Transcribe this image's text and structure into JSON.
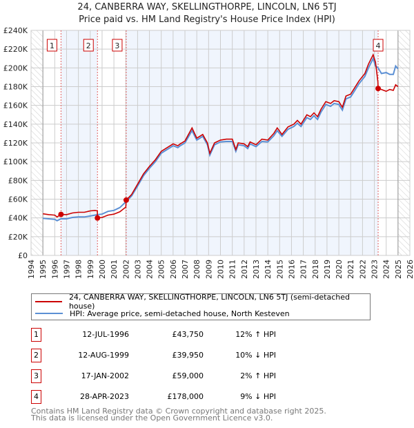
{
  "chart_data": {
    "type": "line",
    "title": "24, CANBERRA WAY, SKELLINGTHORPE, LINCOLN, LN6 5TJ",
    "subtitle": "Price paid vs. HM Land Registry's House Price Index (HPI)",
    "xlim": [
      1994,
      2026
    ],
    "ylim": [
      0,
      240000
    ],
    "x_ticks": [
      "1994",
      "1995",
      "1996",
      "1997",
      "1998",
      "1999",
      "2000",
      "2001",
      "2002",
      "2003",
      "2004",
      "2005",
      "2006",
      "2007",
      "2008",
      "2009",
      "2010",
      "2011",
      "2012",
      "2013",
      "2014",
      "2015",
      "2016",
      "2017",
      "2018",
      "2019",
      "2020",
      "2021",
      "2022",
      "2023",
      "2024",
      "2025",
      "2026"
    ],
    "y_ticks": [
      "£0",
      "£20K",
      "£40K",
      "£60K",
      "£80K",
      "£100K",
      "£120K",
      "£140K",
      "£160K",
      "£180K",
      "£200K",
      "£220K",
      "£240K"
    ],
    "grid": true,
    "data_range": [
      1995,
      2025
    ],
    "series": [
      {
        "name": "24, CANBERRA WAY, SKELLINGTHORPE, LINCOLN, LN6 5TJ (semi-detached house)",
        "color": "#cc0000",
        "x": [
          1995,
          1995.5,
          1996,
          1996.2,
          1996.53,
          1997,
          1997.5,
          1998,
          1998.5,
          1999,
          1999.4,
          1999.6,
          1999.61,
          2000,
          2000.5,
          2001,
          2001.5,
          2002.0,
          2002.04,
          2002.5,
          2003,
          2003.5,
          2004,
          2004.5,
          2005,
          2005.5,
          2006,
          2006.4,
          2006.6,
          2007,
          2007.6,
          2008,
          2008.5,
          2008.9,
          2009.1,
          2009.5,
          2010,
          2010.5,
          2011,
          2011.3,
          2011.5,
          2012,
          2012.3,
          2012.5,
          2013,
          2013.5,
          2014,
          2014.5,
          2014.8,
          2015.2,
          2015.7,
          2016.2,
          2016.5,
          2016.8,
          2017.3,
          2017.6,
          2017.9,
          2018.2,
          2018.5,
          2018.9,
          2019.3,
          2019.6,
          2020,
          2020.3,
          2020.6,
          2021,
          2021.3,
          2021.7,
          2022.2,
          2022.5,
          2022.9,
          2023.1,
          2023.3,
          2023.32,
          2023.6,
          2024,
          2024.3,
          2024.6,
          2024.8,
          2025
        ],
        "y": [
          44400,
          43500,
          43000,
          41000,
          43750,
          43500,
          45300,
          46000,
          46000,
          47500,
          48000,
          47500,
          39950,
          40500,
          43000,
          44000,
          46500,
          51500,
          59000,
          65000,
          76000,
          87000,
          95000,
          102000,
          111000,
          115000,
          119000,
          117000,
          119000,
          122000,
          136000,
          125000,
          129000,
          120000,
          109000,
          120000,
          123000,
          124000,
          124000,
          113000,
          120000,
          119000,
          116000,
          121000,
          118000,
          124000,
          123000,
          130000,
          136000,
          129000,
          137000,
          140000,
          144000,
          140000,
          150000,
          148000,
          152000,
          148000,
          156000,
          164000,
          162000,
          165000,
          164000,
          158000,
          170000,
          172000,
          178000,
          186000,
          194000,
          204000,
          214000,
          206000,
          185000,
          178000,
          177000,
          175000,
          177000,
          176000,
          182000,
          180000
        ]
      },
      {
        "name": "HPI: Average price, semi-detached house, North Kesteven",
        "color": "#5b8fd4",
        "x": [
          1995,
          1995.5,
          1996,
          1996.2,
          1996.53,
          1997,
          1997.5,
          1998,
          1998.5,
          1999,
          1999.4,
          1999.61,
          2000,
          2000.5,
          2001,
          2001.5,
          2002.04,
          2002.5,
          2003,
          2003.5,
          2004,
          2004.5,
          2005,
          2005.5,
          2006,
          2006.4,
          2006.6,
          2007,
          2007.6,
          2008,
          2008.5,
          2008.9,
          2009.1,
          2009.5,
          2010,
          2010.5,
          2011,
          2011.3,
          2011.5,
          2012,
          2012.3,
          2012.5,
          2013,
          2013.5,
          2014,
          2014.5,
          2014.8,
          2015.2,
          2015.7,
          2016.2,
          2016.5,
          2016.8,
          2017.3,
          2017.6,
          2017.9,
          2018.2,
          2018.5,
          2018.9,
          2019.3,
          2019.6,
          2020,
          2020.3,
          2020.6,
          2021,
          2021.3,
          2021.7,
          2022.2,
          2022.5,
          2022.9,
          2023.1,
          2023.32,
          2023.6,
          2024,
          2024.3,
          2024.6,
          2024.8,
          2025
        ],
        "y": [
          39500,
          39000,
          38500,
          37000,
          39000,
          39000,
          40500,
          41000,
          41000,
          42000,
          43000,
          43500,
          44000,
          47000,
          48000,
          51000,
          57500,
          63500,
          74000,
          85000,
          93000,
          100000,
          109000,
          113000,
          117000,
          115000,
          117000,
          120000,
          133000,
          123000,
          127000,
          118000,
          107000,
          118000,
          121000,
          121500,
          121500,
          111000,
          118000,
          117000,
          114000,
          119000,
          116000,
          121500,
          121000,
          127500,
          133000,
          127000,
          134500,
          137500,
          141000,
          137500,
          147000,
          145000,
          149000,
          145000,
          153000,
          161000,
          159000,
          162000,
          161000,
          155000,
          167000,
          169000,
          175000,
          183000,
          191000,
          200000,
          210000,
          202000,
          200000,
          194000,
          195000,
          193000,
          193000,
          202000,
          199000
        ]
      }
    ],
    "sales": [
      {
        "n": "1",
        "x": 1996.53,
        "date": "12-JUL-1996",
        "price": "£43,750",
        "price_value": 43750,
        "hpi": "12% ↑ HPI"
      },
      {
        "n": "2",
        "x": 1999.61,
        "date": "12-AUG-1999",
        "price": "£39,950",
        "price_value": 39950,
        "hpi": "10% ↓ HPI"
      },
      {
        "n": "3",
        "x": 2002.04,
        "date": "17-JAN-2002",
        "price": "£59,000",
        "price_value": 59000,
        "hpi": "2% ↑ HPI"
      },
      {
        "n": "4",
        "x": 2023.32,
        "date": "28-APR-2023",
        "price": "£178,000",
        "price_value": 178000,
        "hpi": "9% ↓ HPI"
      }
    ]
  },
  "legend": {
    "property": "24, CANBERRA WAY, SKELLINGTHORPE, LINCOLN, LN6 5TJ (semi-detached house)",
    "hpi": "HPI: Average price, semi-detached house, North Kesteven"
  },
  "footer": {
    "line1": "Contains HM Land Registry data © Crown copyright and database right 2025.",
    "line2": "This data is licensed under the Open Government Licence v3.0."
  }
}
